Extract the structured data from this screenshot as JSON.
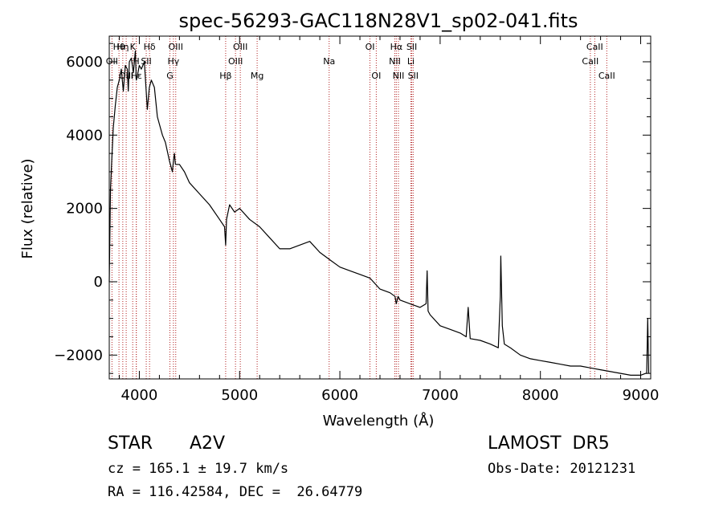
{
  "chart_data": {
    "type": "line",
    "title": "spec-56293-GAC118N28V1_sp02-041.fits",
    "xlabel": "Wavelength (Å)",
    "ylabel": "Flux (relative)",
    "xlim": [
      3700,
      9100
    ],
    "ylim": [
      -2650,
      6700
    ],
    "x_ticks": [
      4000,
      5000,
      6000,
      7000,
      8000,
      9000
    ],
    "y_ticks": [
      -2000,
      0,
      2000,
      4000,
      6000
    ],
    "x_tick_labels": [
      "4000",
      "5000",
      "6000",
      "7000",
      "8000",
      "9000"
    ],
    "y_tick_labels": [
      "−2000",
      "0",
      "2000",
      "4000",
      "6000"
    ],
    "grid": false,
    "line_color": "#000000",
    "marker_color": "#b22222",
    "series": [
      {
        "x": [
          3700,
          3712,
          3725,
          3740,
          3760,
          3780,
          3800,
          3820,
          3840,
          3860,
          3880,
          3890,
          3900,
          3920,
          3940,
          3960,
          3970,
          3980,
          4000,
          4020,
          4050,
          4080,
          4100,
          4120,
          4150,
          4180,
          4200,
          4230,
          4260,
          4300,
          4330,
          4340,
          4350,
          4360,
          4400,
          4450,
          4500,
          4600,
          4700,
          4800,
          4850,
          4861,
          4870,
          4900,
          4950,
          5000,
          5100,
          5200,
          5300,
          5400,
          5500,
          5600,
          5700,
          5800,
          5900,
          6000,
          6100,
          6200,
          6300,
          6400,
          6500,
          6550,
          6563,
          6580,
          6600,
          6700,
          6800,
          6860,
          6870,
          6880,
          6900,
          7000,
          7100,
          7200,
          7260,
          7280,
          7300,
          7400,
          7500,
          7580,
          7600,
          7605,
          7620,
          7640,
          7700,
          7800,
          7900,
          8000,
          8100,
          8200,
          8300,
          8400,
          8500,
          8600,
          8700,
          8800,
          8900,
          9000,
          9050,
          9060,
          9070,
          9080
        ],
        "y": [
          0,
          2500,
          3300,
          4200,
          4800,
          5300,
          5500,
          5800,
          5200,
          5900,
          5800,
          5200,
          6000,
          6100,
          5700,
          6300,
          5500,
          5600,
          5900,
          5800,
          6000,
          4700,
          5300,
          5500,
          5300,
          4500,
          4300,
          4000,
          3800,
          3300,
          3000,
          3300,
          3500,
          3200,
          3200,
          3000,
          2700,
          2400,
          2100,
          1700,
          1500,
          1000,
          1700,
          2100,
          1900,
          2000,
          1700,
          1500,
          1200,
          900,
          900,
          1000,
          1100,
          800,
          600,
          400,
          300,
          200,
          100,
          -200,
          -300,
          -400,
          -600,
          -400,
          -500,
          -600,
          -700,
          -600,
          300,
          -800,
          -900,
          -1200,
          -1300,
          -1400,
          -1500,
          -700,
          -1550,
          -1600,
          -1700,
          -1800,
          -400,
          700,
          -1200,
          -1700,
          -1800,
          -2000,
          -2100,
          -2150,
          -2200,
          -2250,
          -2300,
          -2300,
          -2350,
          -2400,
          -2450,
          -2500,
          -2550,
          -2550,
          -2500,
          -2500,
          -1000,
          -2500
        ]
      }
    ],
    "lines": [
      {
        "label": "Hθ",
        "x": 3797,
        "row": 0
      },
      {
        "label": "OII",
        "x": 3727,
        "row": 1
      },
      {
        "label": "OIII",
        "x": 3869,
        "row": 2
      },
      {
        "label": "Hη",
        "x": 3835,
        "row": 0
      },
      {
        "label": "K",
        "x": 3934,
        "row": 0
      },
      {
        "label": "H",
        "x": 3969,
        "row": 1
      },
      {
        "label": "Hε",
        "x": 3970,
        "row": 2
      },
      {
        "label": "SII",
        "x": 4069,
        "row": 1
      },
      {
        "label": "Hδ",
        "x": 4102,
        "row": 0
      },
      {
        "label": "OIII",
        "x": 4363,
        "row": 0
      },
      {
        "label": "Hγ",
        "x": 4340,
        "row": 1
      },
      {
        "label": "G",
        "x": 4305,
        "row": 2
      },
      {
        "label": "Hβ",
        "x": 4861,
        "row": 2
      },
      {
        "label": "OIII",
        "x": 4959,
        "row": 1
      },
      {
        "label": "OIII",
        "x": 5007,
        "row": 0
      },
      {
        "label": "Mg",
        "x": 5175,
        "row": 2
      },
      {
        "label": "Na",
        "x": 5893,
        "row": 1
      },
      {
        "label": "OI",
        "x": 6300,
        "row": 0
      },
      {
        "label": "OI",
        "x": 6363,
        "row": 2
      },
      {
        "label": "Hα",
        "x": 6563,
        "row": 0
      },
      {
        "label": "NII",
        "x": 6548,
        "row": 1
      },
      {
        "label": "NII",
        "x": 6584,
        "row": 2
      },
      {
        "label": "SII",
        "x": 6717,
        "row": 0
      },
      {
        "label": "Li",
        "x": 6708,
        "row": 1
      },
      {
        "label": "SII",
        "x": 6731,
        "row": 2
      },
      {
        "label": "CaII",
        "x": 8542,
        "row": 0
      },
      {
        "label": "CaII",
        "x": 8498,
        "row": 1
      },
      {
        "label": "CaII",
        "x": 8662,
        "row": 2
      }
    ]
  },
  "info": {
    "object_class": "STAR",
    "subclass": "A2V",
    "survey": "LAMOST  DR5",
    "cz": "cz = 165.1 ± 19.7 km/s",
    "obs_date": "Obs-Date: 20121231",
    "coords": "RA = 116.42584, DEC =  26.64779"
  }
}
